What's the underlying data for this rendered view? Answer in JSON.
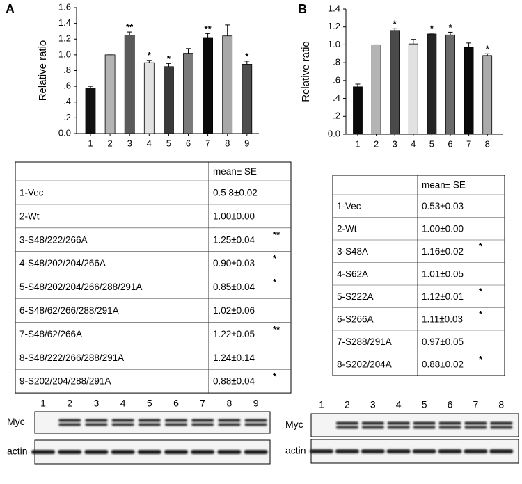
{
  "panels": [
    "A",
    "B"
  ],
  "chart_data": [
    {
      "type": "bar",
      "y_label": "Relative ratio",
      "categories": [
        "1",
        "2",
        "3",
        "4",
        "5",
        "6",
        "7",
        "8",
        "9"
      ],
      "values": [
        0.58,
        1.0,
        1.25,
        0.9,
        0.85,
        1.02,
        1.22,
        1.24,
        0.88
      ],
      "errors": [
        0.02,
        0.0,
        0.04,
        0.03,
        0.04,
        0.06,
        0.05,
        0.14,
        0.04
      ],
      "colors": [
        "#111111",
        "#b4b4b4",
        "#5a5a5a",
        "#e2e2e2",
        "#3a3a3a",
        "#7a7a7a",
        "#0a0a0a",
        "#a8a8a8",
        "#4e4e4e"
      ],
      "significance": [
        null,
        null,
        "**",
        "*",
        "*",
        null,
        "**",
        null,
        "*"
      ],
      "ylim": [
        0,
        1.6
      ],
      "yticks": [
        {
          "value": 0,
          "label": "0.0"
        },
        {
          "value": 0.2,
          "label": ".2"
        },
        {
          "value": 0.4,
          "label": ".4"
        },
        {
          "value": 0.6,
          "label": ".6"
        },
        {
          "value": 0.8,
          "label": ".8"
        },
        {
          "value": 1.0,
          "label": "1.0"
        },
        1.2,
        1.4,
        1.6
      ]
    },
    {
      "type": "bar",
      "y_label": "Relative ratio",
      "categories": [
        "1",
        "2",
        "3",
        "4",
        "5",
        "6",
        "7",
        "8"
      ],
      "values": [
        0.53,
        1.0,
        1.16,
        1.01,
        1.12,
        1.11,
        0.97,
        0.88
      ],
      "errors": [
        0.03,
        0.0,
        0.02,
        0.05,
        0.01,
        0.03,
        0.05,
        0.02
      ],
      "colors": [
        "#0a0a0a",
        "#b4b4b4",
        "#4a4a4a",
        "#e2e2e2",
        "#242424",
        "#6a6a6a",
        "#0a0a0a",
        "#ababab"
      ],
      "significance": [
        null,
        null,
        "*",
        null,
        "*",
        "*",
        null,
        "*"
      ],
      "ylim": [
        0,
        1.4
      ],
      "yticks": [
        {
          "value": 0,
          "label": "0.0"
        },
        {
          "value": 0.2,
          "label": ".2"
        },
        {
          "value": 0.4,
          "label": ".4"
        },
        {
          "value": 0.6,
          "label": ".6"
        },
        {
          "value": 0.8,
          "label": ".8"
        },
        {
          "value": 1.0,
          "label": "1.0"
        },
        1.2,
        1.4
      ]
    }
  ],
  "tables": [
    {
      "header": "mean± SE",
      "rows": [
        {
          "label": "1-Vec",
          "value": "0.5 8±0.02"
        },
        {
          "label": "2-Wt",
          "value": "1.00±0.00"
        },
        {
          "label": "3-S48/222/266A",
          "value": "1.25±0.04",
          "mark": "**"
        },
        {
          "label": "4-S48/202/204/266A",
          "value": "0.90±0.03",
          "mark": "*"
        },
        {
          "label": "5-S48/202/204/266/288/291A",
          "value": "0.85±0.04",
          "mark": "*"
        },
        {
          "label": "6-S48/62/266/288/291A",
          "value": "1.02±0.06"
        },
        {
          "label": "7-S48/62/266A",
          "value": "1.22±0.05",
          "mark": "**"
        },
        {
          "label": "8-S48/222/266/288/291A",
          "value": "1.24±0.14"
        },
        {
          "label": "9-S202/204/288/291A",
          "value": "0.88±0.04",
          "mark": "*"
        }
      ]
    },
    {
      "header": "mean± SE",
      "rows": [
        {
          "label": "1-Vec",
          "value": "0.53±0.03"
        },
        {
          "label": "2-Wt",
          "value": "1.00±0.00"
        },
        {
          "label": "3-S48A",
          "value": "1.16±0.02",
          "mark": "*"
        },
        {
          "label": "4-S62A",
          "value": "1.01±0.05"
        },
        {
          "label": "5-S222A",
          "value": "1.12±0.01",
          "mark": "*"
        },
        {
          "label": "6-S266A",
          "value": "1.11±0.03",
          "mark": "*"
        },
        {
          "label": "7-S288/291A",
          "value": "0.97±0.05"
        },
        {
          "label": "8-S202/204A",
          "value": "0.88±0.02",
          "mark": "*"
        }
      ]
    }
  ],
  "blots": [
    {
      "lanes": [
        "1",
        "2",
        "3",
        "4",
        "5",
        "6",
        "7",
        "8",
        "9"
      ],
      "rows": [
        "Myc",
        "actin"
      ]
    },
    {
      "lanes": [
        "1",
        "2",
        "3",
        "4",
        "5",
        "6",
        "7",
        "8"
      ],
      "rows": [
        "Myc",
        "actin"
      ]
    }
  ]
}
